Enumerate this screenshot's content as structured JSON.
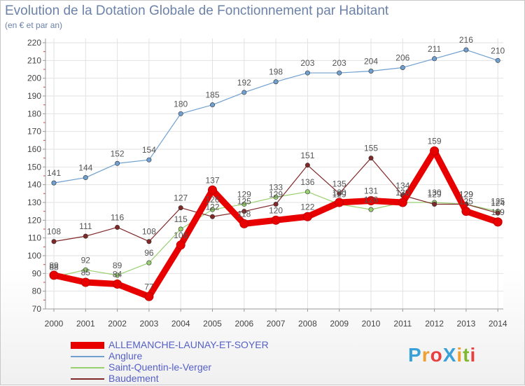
{
  "title": "Evolution de la Dotation Globale de Fonctionnement par Habitant",
  "subtitle": "(en € et par an)",
  "logo": {
    "text": "ProXiti",
    "letters": [
      "P",
      "r",
      "o",
      "X",
      "i",
      "t",
      "i"
    ],
    "colors": [
      "#3aa0d8",
      "#f0a030",
      "#e84040",
      "#3aa0d8",
      "#f0a030",
      "#80b830",
      "#e84040"
    ]
  },
  "chart_data": {
    "type": "line",
    "title": "Evolution de la Dotation Globale de Fonctionnement par Habitant",
    "ylabel": "(en € et par an)",
    "x": [
      "2000",
      "2001",
      "2002",
      "2003",
      "2004",
      "2005",
      "2006",
      "2007",
      "2008",
      "2009",
      "2010",
      "2011",
      "2012",
      "2013",
      "2014"
    ],
    "ylim": [
      70,
      220
    ],
    "yticks": [
      70,
      80,
      90,
      100,
      110,
      120,
      130,
      140,
      150,
      160,
      170,
      180,
      190,
      200,
      210,
      220
    ],
    "grid": true,
    "legend_position": "bottom-left",
    "series": [
      {
        "name": "ALLEMANCHE-LAUNAY-ET-SOYER",
        "color": "#e80000",
        "width": 9,
        "values": [
          89,
          85,
          84,
          77,
          106,
          137,
          118,
          120,
          122,
          130,
          131,
          130,
          159,
          125,
          119
        ]
      },
      {
        "name": "Anglure",
        "color": "#6fa0d0",
        "width": 1.2,
        "values": [
          141,
          144,
          152,
          154,
          180,
          185,
          192,
          198,
          203,
          203,
          204,
          206,
          211,
          216,
          210
        ]
      },
      {
        "name": "Saint-Quentin-le-Verger",
        "color": "#98d070",
        "width": 1.2,
        "values": [
          88,
          92,
          89,
          96,
          115,
          126,
          129,
          133,
          136,
          129,
          126,
          130,
          130,
          129,
          125
        ]
      },
      {
        "name": "Baudement",
        "color": "#802828",
        "width": 1.2,
        "values": [
          108,
          111,
          116,
          108,
          127,
          122,
          125,
          129,
          151,
          135,
          155,
          134,
          129,
          129,
          124
        ]
      }
    ]
  }
}
